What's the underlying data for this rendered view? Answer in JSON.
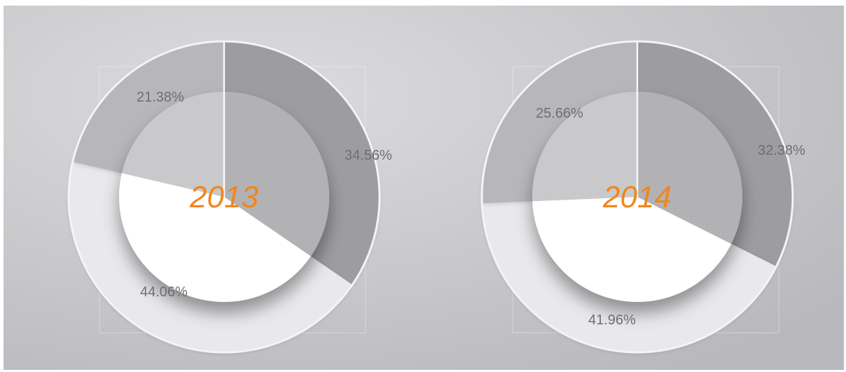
{
  "chart_data": [
    {
      "type": "pie",
      "style": "donut",
      "center_label": "2013",
      "slices": [
        {
          "value": 34.56,
          "label": "34.56%"
        },
        {
          "value": 44.06,
          "label": "44.06%"
        },
        {
          "value": 21.38,
          "label": "21.38%"
        }
      ]
    },
    {
      "type": "pie",
      "style": "donut",
      "center_label": "2014",
      "slices": [
        {
          "value": 32.38,
          "label": "32.38%"
        },
        {
          "value": 41.96,
          "label": "41.96%"
        },
        {
          "value": 25.66,
          "label": "25.66%"
        }
      ]
    }
  ],
  "colors": {
    "slice_1": "#9d9da1",
    "slice_2": "#e9e9ec",
    "slice_3": "#b7b7bb",
    "center_year": "#f0861e",
    "label_text": "#6f6f72"
  }
}
